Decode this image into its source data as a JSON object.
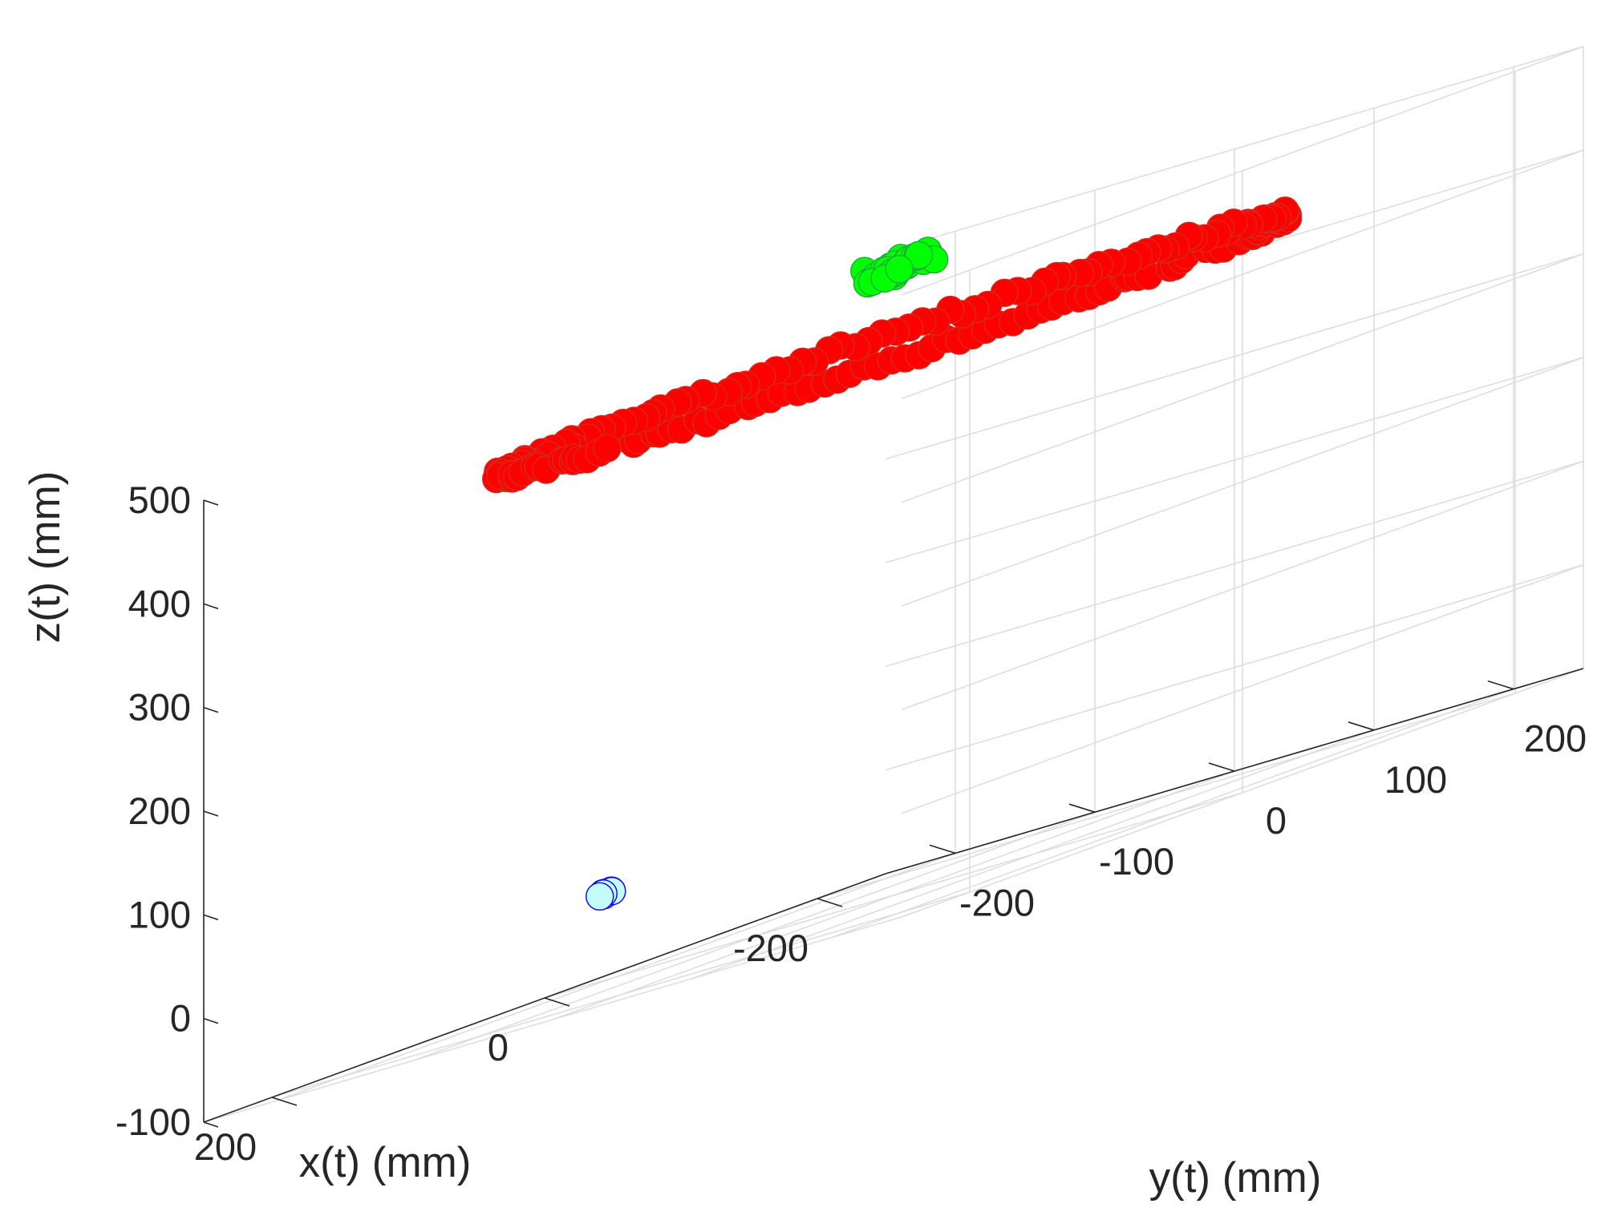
{
  "chart_data": {
    "type": "scatter",
    "projection": "3d",
    "title": "",
    "xlabel": "x(t) (mm)",
    "ylabel": "y(t) (mm)",
    "zlabel": "z(t) (mm)",
    "xlim": [
      -250,
      250
    ],
    "ylim": [
      -250,
      250
    ],
    "zlim": [
      -100,
      500
    ],
    "xticks": [
      -200,
      0,
      200
    ],
    "yticks": [
      -200,
      -100,
      0,
      100,
      200
    ],
    "zticks": [
      -100,
      0,
      100,
      200,
      300,
      400,
      500
    ],
    "xtick_labels": [
      "-200",
      "0",
      "200"
    ],
    "ytick_labels": [
      "-200",
      "-100",
      "0",
      "100",
      "200"
    ],
    "ztick_labels": [
      "-100",
      "0",
      "100",
      "200",
      "300",
      "400",
      "500"
    ],
    "grid": true,
    "legend": "none",
    "series": [
      {
        "marker": "filled-circle",
        "color": "#ff0000",
        "edge_color": "#d42a1e",
        "shape": "circle",
        "center": [
          0,
          0,
          430
        ],
        "radius": 200,
        "points": 180
      },
      {
        "marker": "filled-circle",
        "color": "#00ff00",
        "edge_color": "#1faa3a",
        "shape": "cluster",
        "center": [
          0,
          0,
          505
        ],
        "spread": 15,
        "points": 30
      },
      {
        "marker": "circle",
        "color": "#c4fcfc",
        "edge_color": "#0000ff",
        "shape": "cluster",
        "center": [
          180,
          -30,
          0
        ],
        "spread": 3,
        "points": 8
      }
    ]
  }
}
